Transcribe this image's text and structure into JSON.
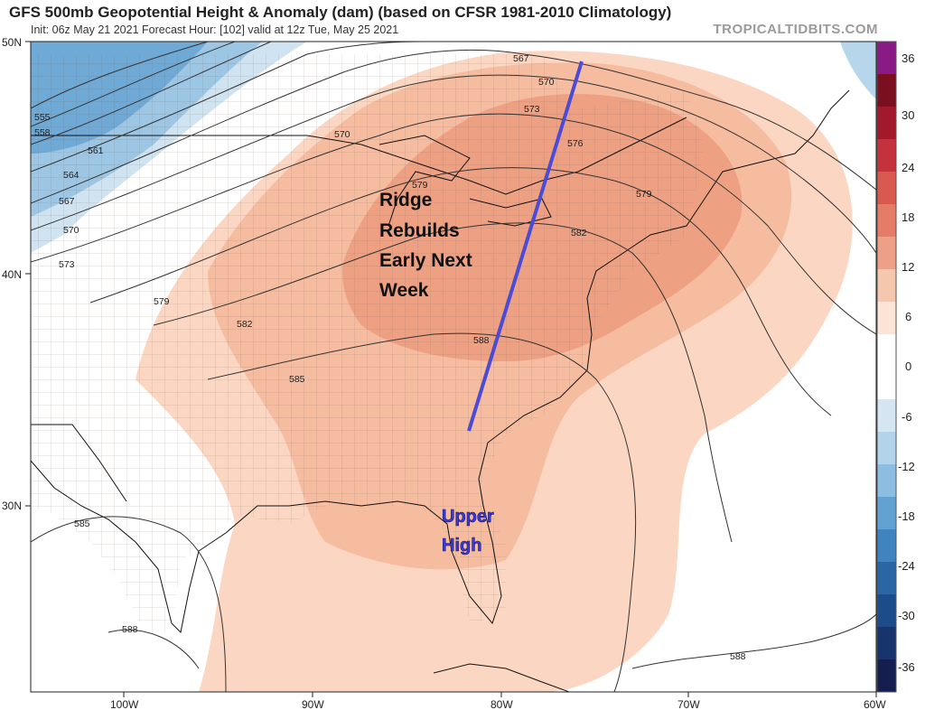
{
  "header": {
    "title": "GFS 500mb Geopotential Height & Anomaly (dam) (based on CFSR 1981-2010 Climatology)",
    "subtitle": "Init: 06z May 21 2021   Forecast Hour: [102]   valid at 12z Tue, May 25 2021",
    "brand": "TROPICALTIDBITS.COM"
  },
  "axes": {
    "lat_labels": [
      "50N",
      "40N",
      "30N"
    ],
    "lon_labels": [
      "100W",
      "90W",
      "80W",
      "70W",
      "60W"
    ]
  },
  "colorbar": {
    "labels": [
      "36",
      "30",
      "24",
      "18",
      "12",
      "6",
      "0",
      "-6",
      "-12",
      "-18",
      "-24",
      "-30",
      "-36"
    ],
    "colors": [
      "#8a1b86",
      "#7a0f1f",
      "#a3192c",
      "#c4333d",
      "#d9584f",
      "#e47c68",
      "#eda087",
      "#f5c8ae",
      "#fbe4d6",
      "#ffffff",
      "#ffffff",
      "#d5e6f2",
      "#b3d3ea",
      "#8dbde0",
      "#62a2d2",
      "#3f84bf",
      "#2a66a6",
      "#1d4c8a",
      "#17346c",
      "#141f50"
    ]
  },
  "contours": {
    "labels": [
      "555",
      "558",
      "561",
      "564",
      "567",
      "570",
      "573",
      "579",
      "582",
      "585",
      "585",
      "588",
      "567",
      "570",
      "573",
      "576",
      "579",
      "582",
      "570",
      "579",
      "588",
      "588"
    ]
  },
  "annotations": {
    "ridge_text": [
      "Ridge",
      "Rebuilds",
      "Early Next",
      "Week"
    ],
    "high_text": [
      "Upper",
      "High"
    ]
  }
}
